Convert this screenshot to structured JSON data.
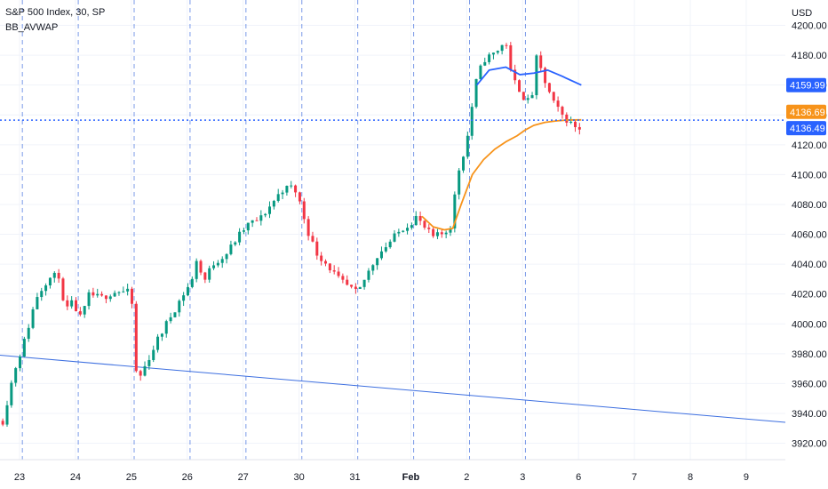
{
  "header": {
    "symbol_line": "S&P 500 Index, 30, SP",
    "indicator": "BB_AVWAP"
  },
  "chart_data": {
    "type": "candlestick",
    "currency": "USD",
    "grid": true,
    "y_ticks": [
      4200,
      4180,
      4160,
      4140,
      4120,
      4100,
      4080,
      4060,
      4040,
      4020,
      4000,
      3980,
      3960,
      3940,
      3920
    ],
    "y_tick_labels": [
      "4200.00",
      "4180.00",
      "4160.00",
      "4140.00",
      "4120.00",
      "4100.00",
      "4080.00",
      "4060.00",
      "4040.00",
      "4020.00",
      "4000.00",
      "3980.00",
      "3960.00",
      "3940.00",
      "3920.00"
    ],
    "ylim": [
      3909,
      4217
    ],
    "x_labels": [
      {
        "label": "23",
        "x": 0.3
      },
      {
        "label": "24",
        "x": 1.3
      },
      {
        "label": "25",
        "x": 2.3
      },
      {
        "label": "26",
        "x": 3.3
      },
      {
        "label": "27",
        "x": 4.3
      },
      {
        "label": "30",
        "x": 5.3
      },
      {
        "label": "31",
        "x": 6.3
      },
      {
        "label": "Feb",
        "x": 7.3,
        "bold": true
      },
      {
        "label": "2",
        "x": 8.3
      },
      {
        "label": "3",
        "x": 9.3
      },
      {
        "label": "6",
        "x": 10.3
      },
      {
        "label": "7",
        "x": 11.3
      },
      {
        "label": "8",
        "x": 12.3
      },
      {
        "label": "9",
        "x": 13.3
      }
    ],
    "session_breaks": [
      0.35,
      1.35,
      2.35,
      3.35,
      4.35,
      5.35,
      6.35,
      7.35,
      8.35,
      9.35
    ],
    "xlim": [
      -0.05,
      14.0
    ],
    "candle_anchors": [
      [
        0.0,
        3935
      ],
      [
        0.2,
        3968
      ],
      [
        0.4,
        3990
      ],
      [
        0.6,
        4018
      ],
      [
        0.8,
        4030
      ],
      [
        1.0,
        4033
      ],
      [
        1.1,
        4008
      ],
      [
        1.25,
        4014
      ],
      [
        1.4,
        4003
      ],
      [
        1.55,
        4020
      ],
      [
        1.75,
        4017
      ],
      [
        1.9,
        4020
      ],
      [
        2.05,
        4022
      ],
      [
        2.25,
        4021
      ],
      [
        2.3,
        4019
      ],
      [
        2.4,
        3960
      ],
      [
        2.55,
        3972
      ],
      [
        2.75,
        3988
      ],
      [
        3.0,
        4005
      ],
      [
        3.2,
        4018
      ],
      [
        3.4,
        4030
      ],
      [
        3.45,
        4045
      ],
      [
        3.6,
        4028
      ],
      [
        3.75,
        4040
      ],
      [
        4.0,
        4047
      ],
      [
        4.2,
        4058
      ],
      [
        4.4,
        4067
      ],
      [
        4.6,
        4070
      ],
      [
        4.8,
        4080
      ],
      [
        5.0,
        4090
      ],
      [
        5.2,
        4092
      ],
      [
        5.3,
        4083
      ],
      [
        5.45,
        4063
      ],
      [
        5.6,
        4048
      ],
      [
        5.8,
        4040
      ],
      [
        6.0,
        4030
      ],
      [
        6.2,
        4024
      ],
      [
        6.35,
        4020
      ],
      [
        6.5,
        4032
      ],
      [
        6.7,
        4046
      ],
      [
        6.9,
        4054
      ],
      [
        7.15,
        4064
      ],
      [
        7.3,
        4068
      ],
      [
        7.4,
        4072
      ],
      [
        7.5,
        4066
      ],
      [
        7.7,
        4058
      ],
      [
        7.85,
        4060
      ],
      [
        8.0,
        4064
      ],
      [
        8.15,
        4102
      ],
      [
        8.3,
        4122
      ],
      [
        8.45,
        4160
      ],
      [
        8.6,
        4177
      ],
      [
        8.75,
        4180
      ],
      [
        8.9,
        4185
      ],
      [
        9.0,
        4190
      ],
      [
        9.1,
        4165
      ],
      [
        9.2,
        4160
      ],
      [
        9.35,
        4150
      ],
      [
        9.45,
        4148
      ],
      [
        9.55,
        4178
      ],
      [
        9.7,
        4162
      ],
      [
        9.85,
        4148
      ],
      [
        10.0,
        4140
      ],
      [
        10.2,
        4133
      ],
      [
        10.35,
        4131
      ]
    ],
    "avwap_blue": {
      "x": [
        8.48,
        8.7,
        9.0,
        9.25,
        9.5,
        9.75,
        10.0,
        10.35
      ],
      "y": [
        4160,
        4170,
        4172,
        4167,
        4168,
        4170,
        4166,
        4160
      ]
    },
    "avwap_orange": {
      "x": [
        7.5,
        7.7,
        7.9,
        8.05,
        8.2,
        8.4,
        8.6,
        8.8,
        9.0,
        9.2,
        9.35,
        9.5,
        9.7,
        9.9,
        10.1,
        10.35
      ],
      "y": [
        4072,
        4065,
        4063,
        4064,
        4080,
        4100,
        4110,
        4117,
        4122,
        4126,
        4130,
        4133,
        4135,
        4136,
        4136.6,
        4136.7
      ]
    },
    "trendline": {
      "x": [
        -0.05,
        14.0
      ],
      "y": [
        3979,
        3934
      ]
    },
    "current_price_line": 4136.49,
    "price_tags": [
      {
        "value": 4159.99,
        "label": "4159.99",
        "color": "#2962ff"
      },
      {
        "value": 4136.69,
        "label": "4136.69",
        "color": "#f7931a"
      },
      {
        "value": 4136.49,
        "label": "4136.49",
        "color": "#2962ff"
      }
    ],
    "colors": {
      "up": "#089981",
      "down": "#f23645",
      "grid": "#f0f3fa",
      "session_break": "#4d78e0",
      "avwap_blue": "#2962ff",
      "avwap_orange": "#f7931a",
      "trendline": "#3d6fe0",
      "price_line": "#2962ff"
    }
  }
}
